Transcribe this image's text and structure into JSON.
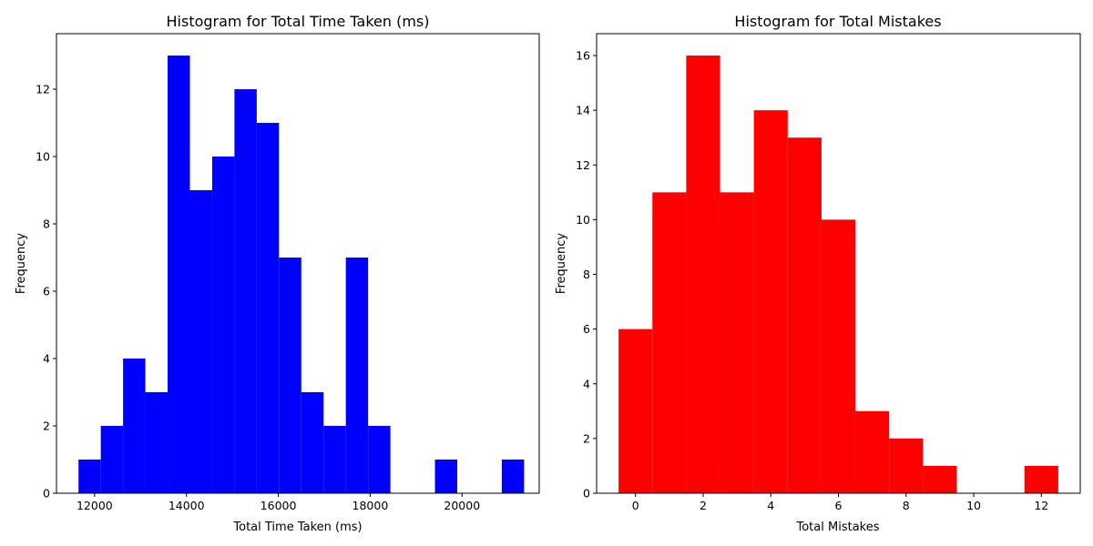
{
  "chart_data": [
    {
      "type": "bar",
      "title": "Histogram for Total Time Taken (ms)",
      "xlabel": "Total Time Taken (ms)",
      "ylabel": "Frequency",
      "color": "#0000ff",
      "xlim": [
        11170,
        21680
      ],
      "ylim": [
        0,
        13.65
      ],
      "x_ticks": [
        12000,
        14000,
        16000,
        18000,
        20000
      ],
      "y_ticks": [
        0,
        2,
        4,
        6,
        8,
        10,
        12
      ],
      "bins": [
        {
          "x0": 11650,
          "x1": 12135,
          "count": 1
        },
        {
          "x0": 12135,
          "x1": 12620,
          "count": 2
        },
        {
          "x0": 12620,
          "x1": 13105,
          "count": 4
        },
        {
          "x0": 13105,
          "x1": 13590,
          "count": 3
        },
        {
          "x0": 13590,
          "x1": 14075,
          "count": 13
        },
        {
          "x0": 14075,
          "x1": 14560,
          "count": 9
        },
        {
          "x0": 14560,
          "x1": 15045,
          "count": 10
        },
        {
          "x0": 15045,
          "x1": 15530,
          "count": 12
        },
        {
          "x0": 15530,
          "x1": 16015,
          "count": 11
        },
        {
          "x0": 16015,
          "x1": 16500,
          "count": 7
        },
        {
          "x0": 16500,
          "x1": 16985,
          "count": 3
        },
        {
          "x0": 16985,
          "x1": 17470,
          "count": 2
        },
        {
          "x0": 17470,
          "x1": 17955,
          "count": 7
        },
        {
          "x0": 17955,
          "x1": 18440,
          "count": 2
        },
        {
          "x0": 18440,
          "x1": 18925,
          "count": 0
        },
        {
          "x0": 18925,
          "x1": 19410,
          "count": 0
        },
        {
          "x0": 19410,
          "x1": 19895,
          "count": 1
        },
        {
          "x0": 19895,
          "x1": 20380,
          "count": 0
        },
        {
          "x0": 20380,
          "x1": 20865,
          "count": 0
        },
        {
          "x0": 20865,
          "x1": 21350,
          "count": 1
        }
      ]
    },
    {
      "type": "bar",
      "title": "Histogram for Total Mistakes",
      "xlabel": "Total Mistakes",
      "ylabel": "Frequency",
      "color": "#ff0000",
      "xlim": [
        -1.15,
        13.15
      ],
      "ylim": [
        0,
        16.8
      ],
      "x_ticks": [
        0,
        2,
        4,
        6,
        8,
        10,
        12
      ],
      "y_ticks": [
        0,
        2,
        4,
        6,
        8,
        10,
        12,
        14,
        16
      ],
      "bins": [
        {
          "x0": -0.5,
          "x1": 0.5,
          "count": 6
        },
        {
          "x0": 0.5,
          "x1": 1.5,
          "count": 11
        },
        {
          "x0": 1.5,
          "x1": 2.5,
          "count": 16
        },
        {
          "x0": 2.5,
          "x1": 3.5,
          "count": 11
        },
        {
          "x0": 3.5,
          "x1": 4.5,
          "count": 14
        },
        {
          "x0": 4.5,
          "x1": 5.5,
          "count": 13
        },
        {
          "x0": 5.5,
          "x1": 6.5,
          "count": 10
        },
        {
          "x0": 6.5,
          "x1": 7.5,
          "count": 3
        },
        {
          "x0": 7.5,
          "x1": 8.5,
          "count": 2
        },
        {
          "x0": 8.5,
          "x1": 9.5,
          "count": 1
        },
        {
          "x0": 9.5,
          "x1": 10.5,
          "count": 0
        },
        {
          "x0": 10.5,
          "x1": 11.5,
          "count": 0
        },
        {
          "x0": 11.5,
          "x1": 12.5,
          "count": 1
        }
      ]
    }
  ]
}
